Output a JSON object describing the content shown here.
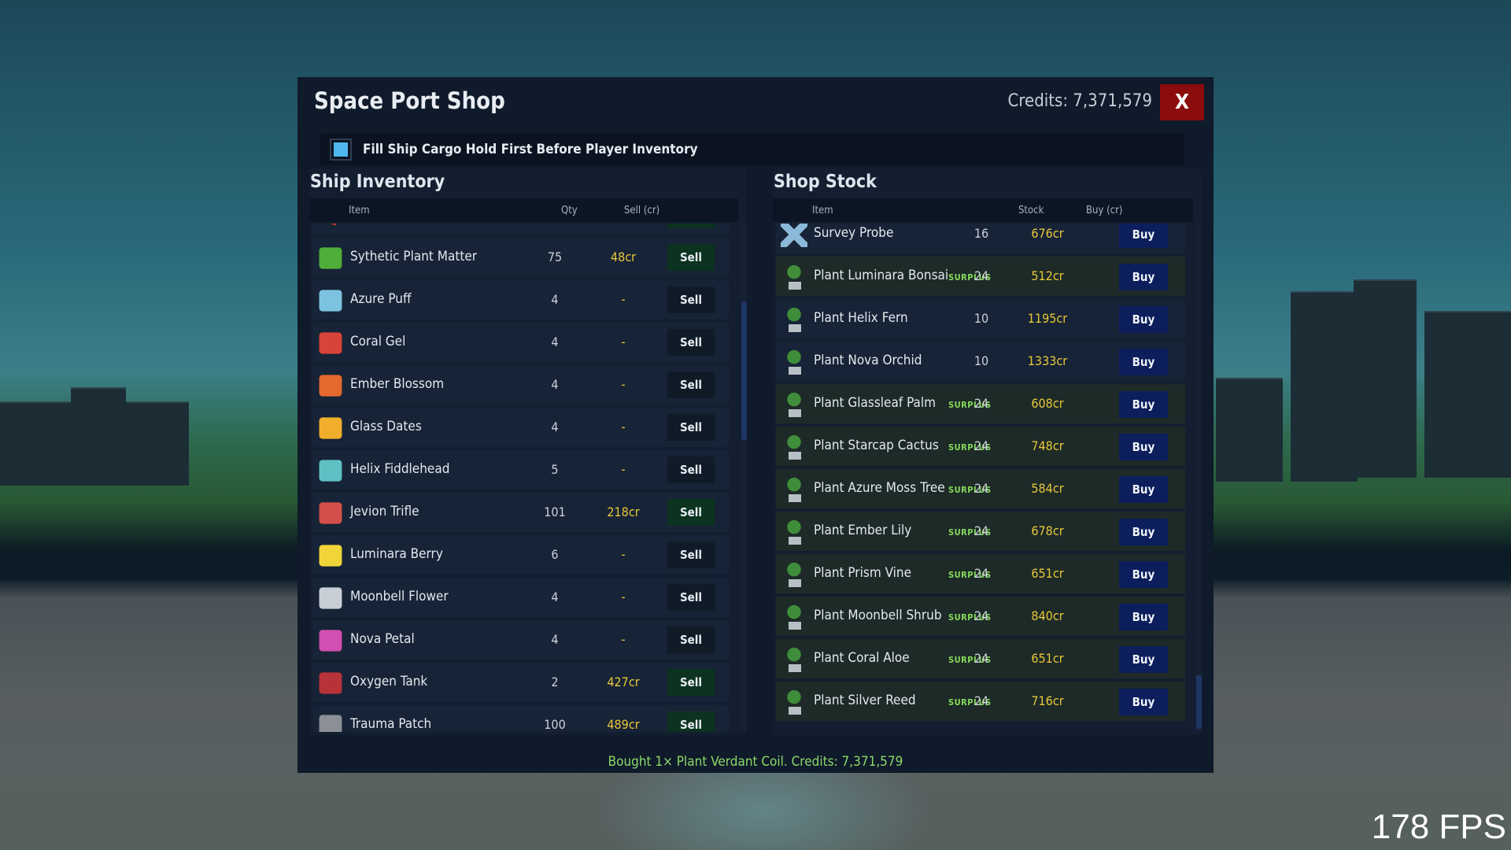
{
  "hud": {
    "fps": "178 FPS"
  },
  "shop": {
    "title": "Space Port Shop",
    "credits": "Credits: 7,371,579",
    "close_label": "X",
    "cargo_option": {
      "label": "Fill Ship Cargo Hold First Before Player Inventory",
      "checked": true
    },
    "status": "Bought 1× Plant Verdant Coil.  Credits: 7,371,579"
  },
  "ship_inventory": {
    "title": "Ship Inventory",
    "columns": {
      "item": "Item",
      "qty": "Qty",
      "sell": "Sell (cr)"
    },
    "rows": [
      {
        "name": "Sythetic Plant Matter",
        "qty": "75",
        "price": "48cr",
        "action": "Sell",
        "icon": "green-cube-icon",
        "color": "#4fae3a"
      },
      {
        "name": "Azure Puff",
        "qty": "4",
        "price": "-",
        "action": "Sell",
        "icon": "azure-puff-icon",
        "color": "#7cc3e0"
      },
      {
        "name": "Coral Gel",
        "qty": "4",
        "price": "-",
        "action": "Sell",
        "icon": "coral-gel-icon",
        "color": "#d9443a"
      },
      {
        "name": "Ember Blossom",
        "qty": "4",
        "price": "-",
        "action": "Sell",
        "icon": "ember-blossom-icon",
        "color": "#e4692e"
      },
      {
        "name": "Glass Dates",
        "qty": "4",
        "price": "-",
        "action": "Sell",
        "icon": "glass-dates-icon",
        "color": "#f0ae2b"
      },
      {
        "name": "Helix Fiddlehead",
        "qty": "5",
        "price": "-",
        "action": "Sell",
        "icon": "helix-fiddlehead-icon",
        "color": "#5fc0c4"
      },
      {
        "name": "Jevion Trifle",
        "qty": "101",
        "price": "218cr",
        "action": "Sell",
        "icon": "jevion-trifle-icon",
        "color": "#d3504a"
      },
      {
        "name": "Luminara Berry",
        "qty": "6",
        "price": "-",
        "action": "Sell",
        "icon": "luminara-berry-icon",
        "color": "#f0d43a"
      },
      {
        "name": "Moonbell Flower",
        "qty": "4",
        "price": "-",
        "action": "Sell",
        "icon": "moonbell-flower-icon",
        "color": "#c8ced6"
      },
      {
        "name": "Nova Petal",
        "qty": "4",
        "price": "-",
        "action": "Sell",
        "icon": "nova-petal-icon",
        "color": "#d14fb0"
      },
      {
        "name": "Oxygen Tank",
        "qty": "2",
        "price": "427cr",
        "action": "Sell",
        "icon": "oxygen-tank-icon",
        "color": "#b8323a"
      },
      {
        "name": "Trauma Patch",
        "qty": "100",
        "price": "489cr",
        "action": "Sell",
        "icon": "trauma-patch-icon",
        "color": "#8a9096"
      }
    ]
  },
  "shop_stock": {
    "title": "Shop Stock",
    "columns": {
      "item": "Item",
      "stock": "Stock",
      "buy": "Buy (cr)"
    },
    "rows": [
      {
        "name": "Survey Probe",
        "badge": "",
        "stock": "16",
        "price": "676cr",
        "action": "Buy",
        "icon": "survey-probe-icon"
      },
      {
        "name": "Plant Luminara Bonsai",
        "badge": "SURPLUS",
        "stock": "24",
        "price": "512cr",
        "action": "Buy",
        "icon": "potted-plant-icon"
      },
      {
        "name": "Plant Helix Fern",
        "badge": "",
        "stock": "10",
        "price": "1195cr",
        "action": "Buy",
        "icon": "potted-plant-icon"
      },
      {
        "name": "Plant Nova Orchid",
        "badge": "",
        "stock": "10",
        "price": "1333cr",
        "action": "Buy",
        "icon": "potted-plant-icon"
      },
      {
        "name": "Plant Glassleaf Palm",
        "badge": "SURPLUS",
        "stock": "24",
        "price": "608cr",
        "action": "Buy",
        "icon": "potted-plant-icon"
      },
      {
        "name": "Plant Starcap Cactus",
        "badge": "SURPLUS",
        "stock": "24",
        "price": "748cr",
        "action": "Buy",
        "icon": "potted-plant-icon"
      },
      {
        "name": "Plant Azure Moss Tree",
        "badge": "SURPLUS",
        "stock": "24",
        "price": "584cr",
        "action": "Buy",
        "icon": "potted-plant-icon"
      },
      {
        "name": "Plant Ember Lily",
        "badge": "SURPLUS",
        "stock": "24",
        "price": "678cr",
        "action": "Buy",
        "icon": "potted-plant-icon"
      },
      {
        "name": "Plant Prism Vine",
        "badge": "SURPLUS",
        "stock": "24",
        "price": "651cr",
        "action": "Buy",
        "icon": "potted-plant-icon"
      },
      {
        "name": "Plant Moonbell Shrub",
        "badge": "SURPLUS",
        "stock": "24",
        "price": "840cr",
        "action": "Buy",
        "icon": "potted-plant-icon"
      },
      {
        "name": "Plant Coral Aloe",
        "badge": "SURPLUS",
        "stock": "24",
        "price": "651cr",
        "action": "Buy",
        "icon": "potted-plant-icon"
      },
      {
        "name": "Plant Silver Reed",
        "badge": "SURPLUS",
        "stock": "24",
        "price": "716cr",
        "action": "Buy",
        "icon": "potted-plant-icon"
      }
    ]
  }
}
